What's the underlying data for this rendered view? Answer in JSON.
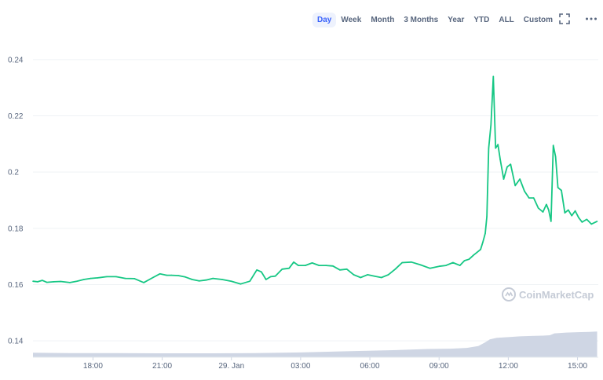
{
  "toolbar": {
    "tabs": [
      "Day",
      "Week",
      "Month",
      "3 Months",
      "Year",
      "YTD",
      "ALL",
      "Custom"
    ],
    "active": "Day",
    "icons": [
      "fullscreen-icon",
      "more-options-icon"
    ]
  },
  "watermark": "CoinMarketCap",
  "colors": {
    "line": "#16c784",
    "volume": "#cfd6e4",
    "accent": "#3861fb"
  },
  "chart_data": {
    "type": "line",
    "ylabel": "",
    "xlabel": "",
    "y_ticks": [
      0.14,
      0.16,
      0.18,
      0.2,
      0.22,
      0.24
    ],
    "y_tick_labels": [
      "0.14",
      "0.16",
      "0.18",
      "0.2",
      "0.22",
      "0.24"
    ],
    "ylim": [
      0.135,
      0.245
    ],
    "x_ticks": [
      18,
      21,
      24,
      27,
      30,
      33,
      36,
      39
    ],
    "x_tick_labels": [
      "18:00",
      "21:00",
      "29. Jan",
      "03:00",
      "06:00",
      "09:00",
      "12:00",
      "15:00"
    ],
    "xlim": [
      15.4,
      39.9
    ],
    "grid": "horizontal",
    "series": [
      {
        "kind": "price",
        "x": [
          15.4,
          15.6,
          15.8,
          16.0,
          16.3,
          16.6,
          17.0,
          17.3,
          17.6,
          17.9,
          18.2,
          18.6,
          19.0,
          19.4,
          19.8,
          20.2,
          20.6,
          20.9,
          21.2,
          21.4,
          21.7,
          22.0,
          22.3,
          22.6,
          22.9,
          23.2,
          23.6,
          24.0,
          24.4,
          24.8,
          25.1,
          25.3,
          25.5,
          25.7,
          25.9,
          26.2,
          26.5,
          26.7,
          26.9,
          27.2,
          27.5,
          27.8,
          28.1,
          28.4,
          28.7,
          29.0,
          29.3,
          29.6,
          29.9,
          30.2,
          30.5,
          30.8,
          31.1,
          31.4,
          31.8,
          32.2,
          32.6,
          33.0,
          33.3,
          33.6,
          33.9,
          34.1,
          34.3,
          34.5,
          34.65,
          34.8,
          34.9,
          35.0,
          35.07,
          35.15,
          35.25,
          35.35,
          35.45,
          35.55,
          35.65,
          35.8,
          35.95,
          36.1,
          36.3,
          36.5,
          36.7,
          36.9,
          37.1,
          37.3,
          37.5,
          37.65,
          37.75,
          37.85,
          37.95,
          38.05,
          38.15,
          38.3,
          38.45,
          38.6,
          38.75,
          38.9,
          39.05,
          39.2,
          39.4,
          39.6,
          39.85
        ],
        "values": [
          0.1612,
          0.161,
          0.1615,
          0.1608,
          0.161,
          0.1611,
          0.1607,
          0.1612,
          0.1618,
          0.1622,
          0.1624,
          0.1628,
          0.1628,
          0.1622,
          0.1621,
          0.1607,
          0.1625,
          0.1638,
          0.1633,
          0.1633,
          0.1632,
          0.1627,
          0.1618,
          0.1613,
          0.1616,
          0.1622,
          0.1618,
          0.1612,
          0.1602,
          0.1612,
          0.1652,
          0.1645,
          0.1618,
          0.1628,
          0.163,
          0.1655,
          0.1658,
          0.168,
          0.1668,
          0.1668,
          0.1677,
          0.1668,
          0.1668,
          0.1666,
          0.1652,
          0.1655,
          0.1635,
          0.1625,
          0.1635,
          0.163,
          0.1625,
          0.1635,
          0.1655,
          0.1678,
          0.168,
          0.167,
          0.1658,
          0.1665,
          0.1668,
          0.1678,
          0.1668,
          0.1685,
          0.169,
          0.1705,
          0.1715,
          0.1725,
          0.1752,
          0.1782,
          0.1842,
          0.2085,
          0.2168,
          0.234,
          0.2085,
          0.2098,
          0.2045,
          0.1975,
          0.2018,
          0.2028,
          0.1952,
          0.1975,
          0.1932,
          0.1908,
          0.1908,
          0.1872,
          0.1858,
          0.1885,
          0.1865,
          0.1825,
          0.2095,
          0.2055,
          0.1945,
          0.1935,
          0.1855,
          0.1865,
          0.1845,
          0.1862,
          0.1838,
          0.1822,
          0.1832,
          0.1815,
          0.1825
        ]
      },
      {
        "kind": "volume",
        "x": [
          15.4,
          17.0,
          19.0,
          21.0,
          23.0,
          25.0,
          27.0,
          29.0,
          31.0,
          32.5,
          33.5,
          34.2,
          34.7,
          35.0,
          35.2,
          35.5,
          36.0,
          36.5,
          37.0,
          37.5,
          37.8,
          38.0,
          38.5,
          39.0,
          39.5,
          39.85
        ],
        "values": [
          6,
          5.5,
          5.5,
          5.2,
          5.2,
          5.5,
          6.5,
          8,
          9.5,
          11,
          11.5,
          12.5,
          15,
          20,
          24,
          26,
          27,
          28,
          28.5,
          29,
          29.5,
          32,
          33,
          33.5,
          34,
          34.5
        ]
      }
    ]
  }
}
